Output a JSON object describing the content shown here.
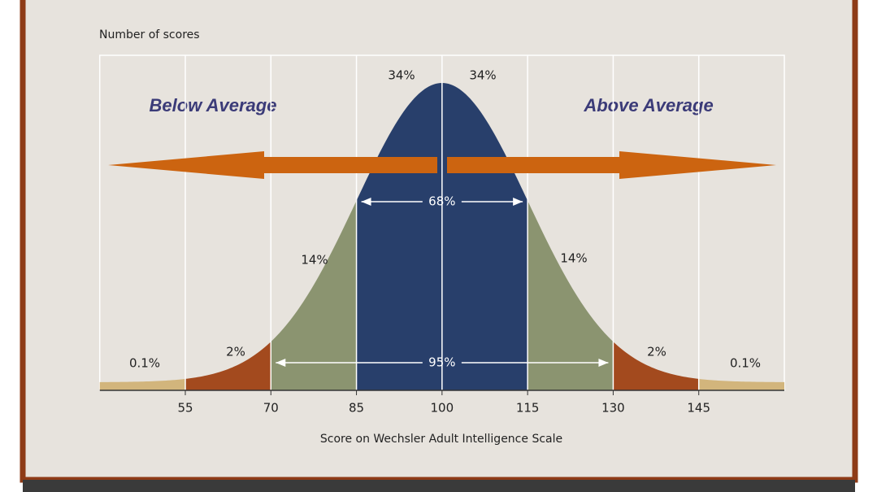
{
  "chart_data": {
    "type": "normal-curve",
    "y_label": "Number of scores",
    "x_label": "Score on Wechsler Adult Intelligence Scale",
    "annotations": [
      "Below Average",
      "Above Average"
    ],
    "xlim": [
      40,
      160
    ],
    "xticks": [
      55,
      70,
      85,
      100,
      115,
      130,
      145
    ],
    "regions": [
      {
        "value": 0.1,
        "label": "0.1%",
        "color": "#d2b57c"
      },
      {
        "value": 2,
        "label": "2%",
        "color": "#a34a1e"
      },
      {
        "value": 14,
        "label": "14%",
        "color": "#8b9470"
      },
      {
        "value": 34,
        "label": "34%",
        "color": "#283f6b"
      },
      {
        "value": 34,
        "label": "34%",
        "color": "#283f6b"
      },
      {
        "value": 14,
        "label": "14%",
        "color": "#8b9470"
      },
      {
        "value": 2,
        "label": "2%",
        "color": "#a34a1e"
      },
      {
        "value": 0.1,
        "label": "0.1%",
        "color": "#d2b57c"
      }
    ],
    "brackets": [
      {
        "value": 68,
        "label": "68%"
      },
      {
        "value": 95,
        "label": "95%"
      }
    ],
    "arrow_color": "#cc6410"
  }
}
